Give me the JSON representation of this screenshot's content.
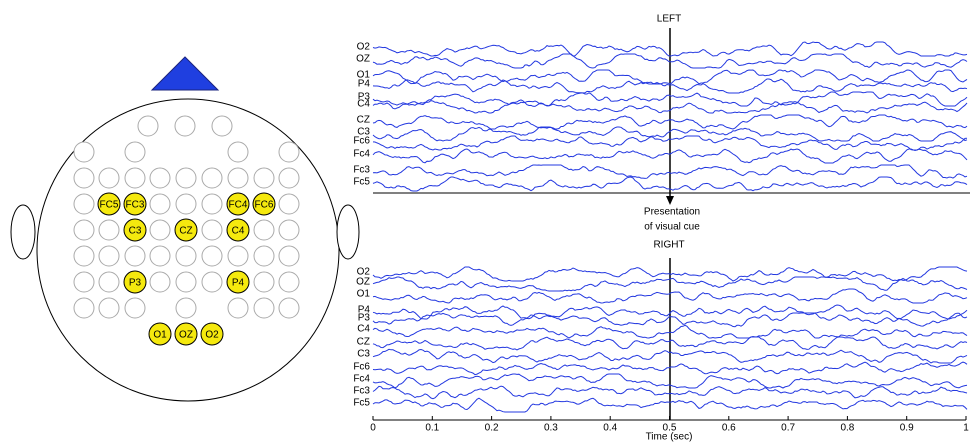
{
  "head_map": {
    "electrodes": [
      "FC5",
      "FC3",
      "FC4",
      "FC6",
      "C3",
      "CZ",
      "C4",
      "P3",
      "P4",
      "O1",
      "OZ",
      "O2"
    ]
  },
  "panels": [
    {
      "title": "LEFT",
      "channels": [
        "O2",
        "OZ",
        "O1",
        "P4",
        "P3",
        "C4",
        "CZ",
        "C3",
        "Fc6",
        "Fc4",
        "Fc3",
        "Fc5"
      ]
    },
    {
      "title": "RIGHT",
      "channels": [
        "O2",
        "OZ",
        "O1",
        "P4",
        "P3",
        "C4",
        "CZ",
        "C3",
        "Fc6",
        "Fc4",
        "Fc3",
        "Fc5"
      ]
    }
  ],
  "cue": {
    "lines": [
      "Presentation",
      "of visual cue"
    ]
  },
  "x_axis": {
    "ticks": [
      0,
      0.1,
      0.2,
      0.3,
      0.4,
      0.5,
      0.6,
      0.7,
      0.8,
      0.9,
      1
    ],
    "label": "Time (sec)"
  }
}
